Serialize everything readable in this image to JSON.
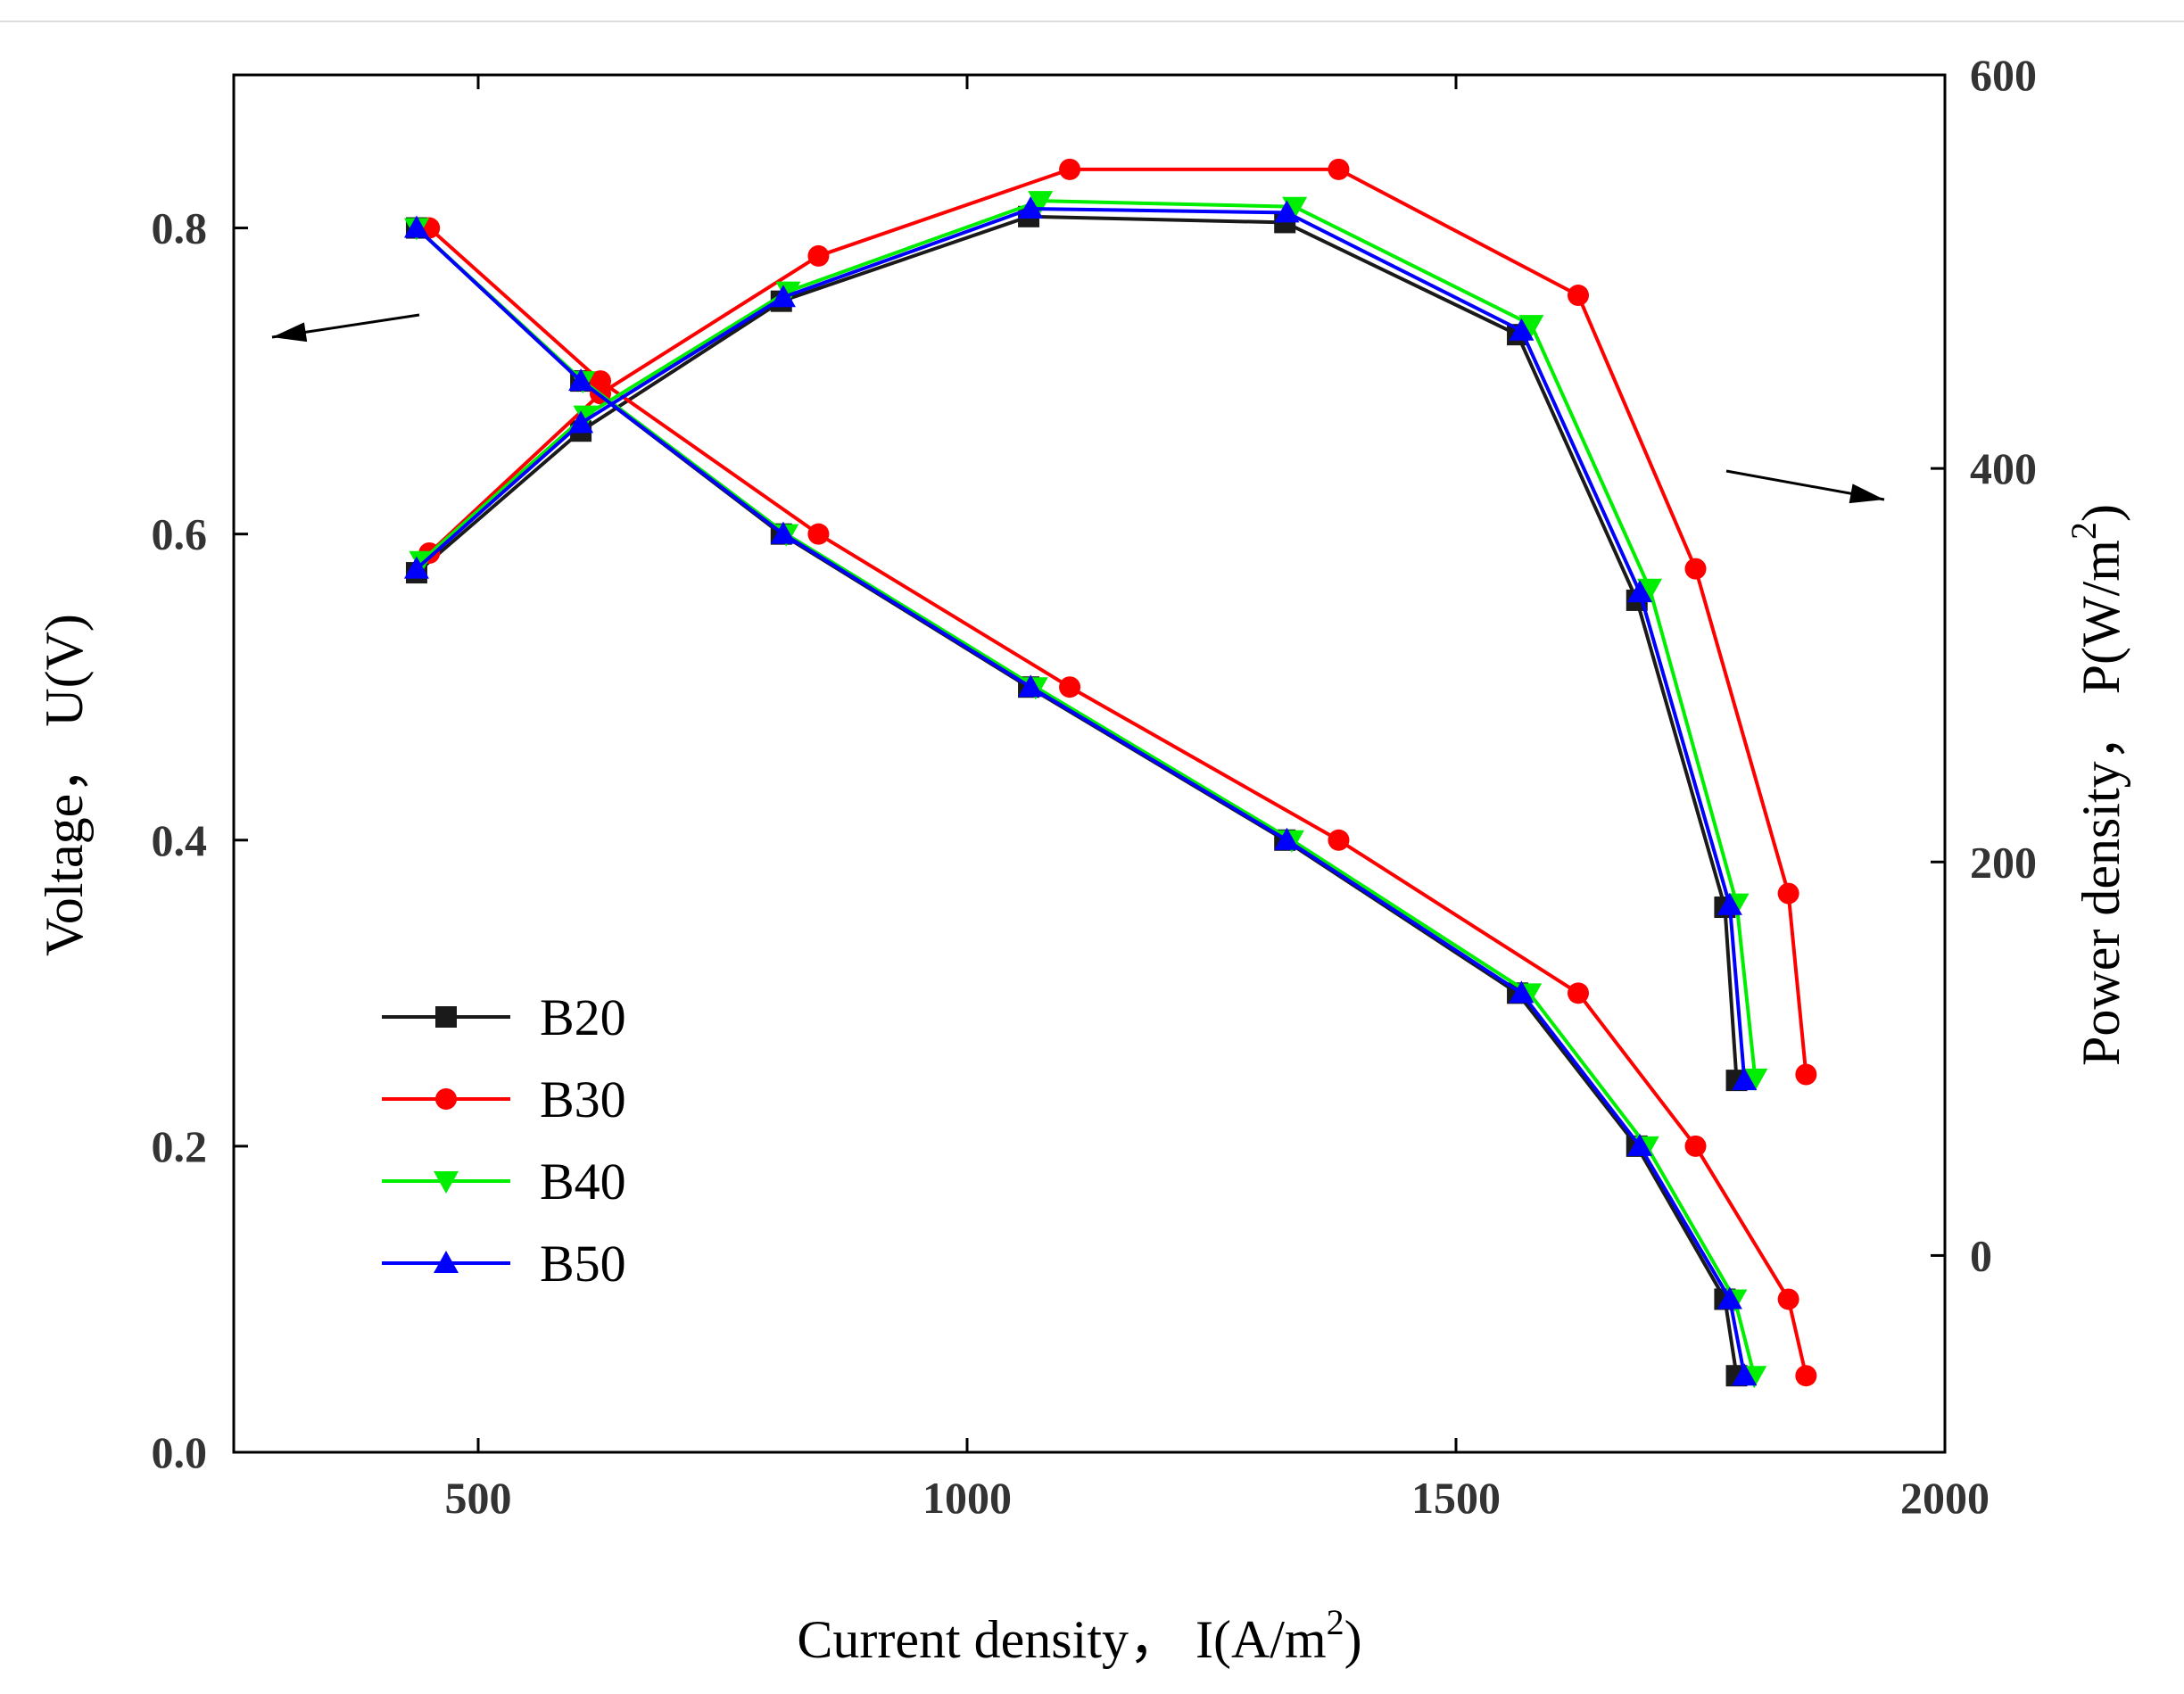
{
  "chart_data": {
    "type": "line",
    "x_axis": {
      "label_prefix": "Current density，  I(A/m",
      "label_sup": "2",
      "label_suffix": ")",
      "range": [
        250,
        2000
      ],
      "ticks": [
        500,
        1000,
        1500,
        2000
      ],
      "tick_labels": [
        "500",
        "1000",
        "1500",
        "2000"
      ]
    },
    "y_left_axis": {
      "label": "Voltage，  U(V)",
      "range": [
        0.0,
        0.9
      ],
      "ticks": [
        0.0,
        0.2,
        0.4,
        0.6,
        0.8
      ],
      "tick_labels": [
        "0.0",
        "0.2",
        "0.4",
        "0.6",
        "0.8"
      ]
    },
    "y_right_axis": {
      "label_prefix": "Power density，  P(W/m",
      "label_sup": "2",
      "label_suffix": ")",
      "range": [
        -100,
        600
      ],
      "ticks": [
        0,
        200,
        400,
        600
      ],
      "tick_labels": [
        "0",
        "200",
        "400",
        "600"
      ]
    },
    "legend_position": "lower-left",
    "series": [
      {
        "name": "B20",
        "color": "#1a1a1a",
        "marker": "square",
        "voltage_curve": {
          "x": [
            437,
            605,
            810,
            1063,
            1325,
            1563,
            1685,
            1775,
            1787
          ],
          "y": [
            0.8,
            0.7,
            0.6,
            0.5,
            0.4,
            0.3,
            0.2,
            0.1,
            0.05
          ]
        },
        "power_curve": {
          "x": [
            437,
            605,
            810,
            1063,
            1325,
            1563,
            1685,
            1775,
            1787
          ],
          "y": [
            347,
            419,
            485,
            528,
            525,
            468,
            333,
            177,
            89
          ]
        }
      },
      {
        "name": "B30",
        "color": "#ff0000",
        "marker": "circle",
        "voltage_curve": {
          "x": [
            450,
            625,
            848,
            1105,
            1380,
            1625,
            1745,
            1840,
            1858
          ],
          "y": [
            0.8,
            0.7,
            0.6,
            0.5,
            0.4,
            0.3,
            0.2,
            0.1,
            0.05
          ]
        },
        "power_curve": {
          "x": [
            450,
            625,
            848,
            1105,
            1380,
            1625,
            1745,
            1840,
            1858
          ],
          "y": [
            357,
            438,
            508,
            552,
            552,
            488,
            349,
            184,
            92
          ]
        }
      },
      {
        "name": "B40",
        "color": "#00ee00",
        "marker": "triangle-down",
        "voltage_curve": {
          "x": [
            437,
            607,
            815,
            1070,
            1332,
            1575,
            1695,
            1785,
            1805
          ],
          "y": [
            0.8,
            0.7,
            0.6,
            0.5,
            0.4,
            0.3,
            0.2,
            0.1,
            0.05
          ]
        },
        "power_curve": {
          "x": [
            442,
            610,
            817,
            1075,
            1335,
            1577,
            1698,
            1787,
            1806
          ],
          "y": [
            353,
            427,
            490,
            536,
            533,
            473,
            339,
            179,
            90
          ]
        }
      },
      {
        "name": "B50",
        "color": "#0000ff",
        "marker": "triangle-up",
        "voltage_curve": {
          "x": [
            437,
            605,
            812,
            1065,
            1327,
            1567,
            1688,
            1780,
            1795
          ],
          "y": [
            0.8,
            0.7,
            0.6,
            0.5,
            0.4,
            0.3,
            0.2,
            0.1,
            0.05
          ]
        },
        "power_curve": {
          "x": [
            437,
            605,
            812,
            1065,
            1327,
            1567,
            1688,
            1780,
            1795
          ],
          "y": [
            349,
            423,
            487,
            532,
            530,
            470,
            337,
            178,
            89
          ]
        }
      }
    ]
  }
}
